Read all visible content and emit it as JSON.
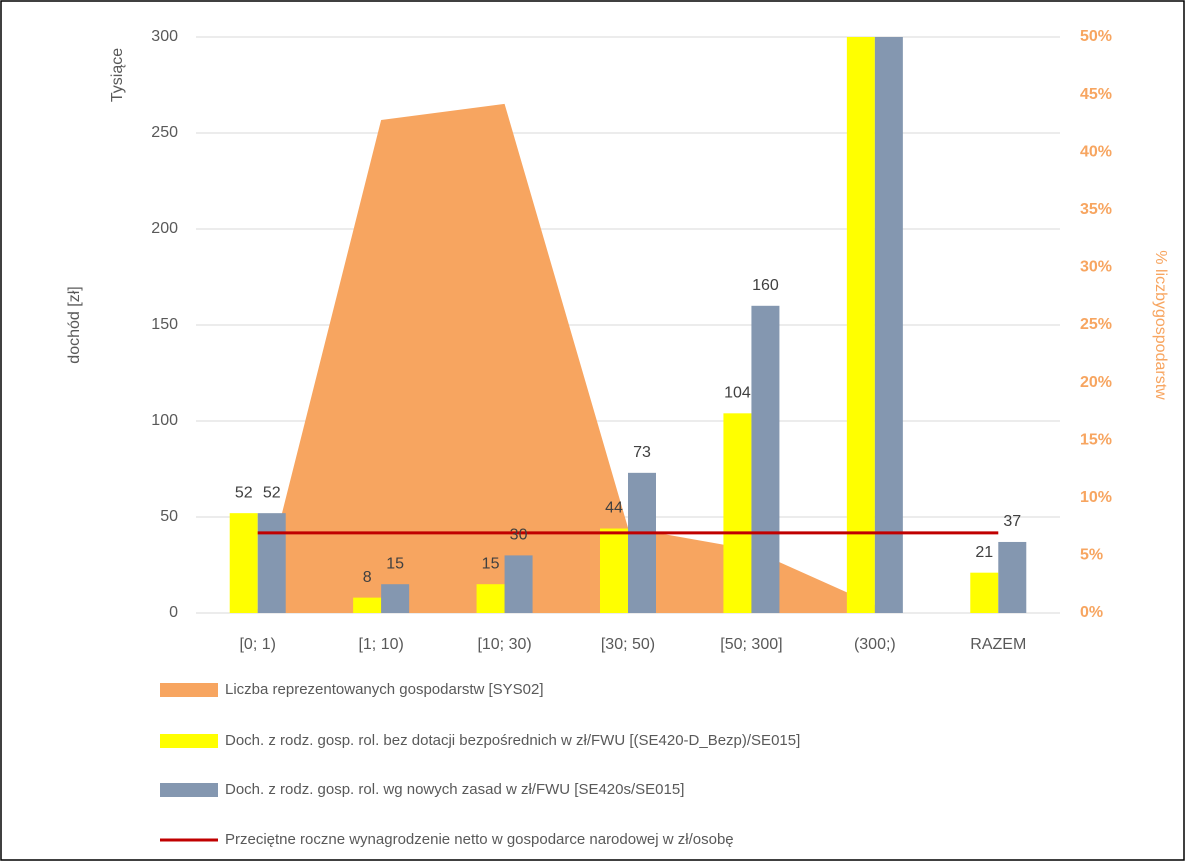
{
  "chart_data": {
    "type": "bar",
    "categories": [
      "[0; 1)",
      "[1; 10)",
      "[10; 30)",
      "[30; 50)",
      "[50; 300]",
      "(300;)",
      "RAZEM"
    ],
    "ylabel": "dochód [zł]",
    "yunits": "Tysiące",
    "y2label": "% liczbygospodarstw",
    "ylim": [
      0,
      300
    ],
    "yticks": [
      0,
      50,
      100,
      150,
      200,
      250,
      300
    ],
    "y2lim": [
      0,
      50
    ],
    "y2ticks": [
      {
        "value": 0,
        "label": "0%"
      },
      {
        "value": 5,
        "label": "5%"
      },
      {
        "value": 10,
        "label": "10%"
      },
      {
        "value": 15,
        "label": "15%"
      },
      {
        "value": 20,
        "label": "20%"
      },
      {
        "value": 25,
        "label": "25%"
      },
      {
        "value": 30,
        "label": "30%"
      },
      {
        "value": 35,
        "label": "35%"
      },
      {
        "value": 40,
        "label": "40%"
      },
      {
        "value": 45,
        "label": "45%"
      },
      {
        "value": 50,
        "label": "50%"
      }
    ],
    "grid": true,
    "legend": "bottom",
    "series": [
      {
        "name": "Liczba reprezentowanych gospodarstw [SYS02]",
        "type": "area",
        "axis": "y2",
        "color": "#F7A560",
        "values": [
          0.3,
          42.8,
          44.2,
          7.4,
          5.5,
          0.7,
          null
        ]
      },
      {
        "name": "Doch. z rodz. gosp. rol. bez dotacji bezpośrednich w zł/FWU [(SE420-D_Bezp)/SE015]",
        "type": "bar",
        "color": "#FFFF00",
        "values": [
          52,
          8,
          15,
          44,
          104,
          300,
          21
        ]
      },
      {
        "name": "Doch. z rodz. gosp. rol. wg nowych zasad w zł/FWU [SE420s/SE015]",
        "type": "bar",
        "color": "#8497B0",
        "values": [
          52,
          15,
          30,
          73,
          160,
          300,
          37
        ]
      },
      {
        "name": "Przeciętne roczne wynagrodzenie netto w gospodarce narodowej w zł/osobę",
        "type": "line",
        "color": "#C00000",
        "values": [
          41.7,
          41.7,
          41.7,
          41.7,
          41.7,
          41.7,
          41.7
        ]
      }
    ]
  }
}
